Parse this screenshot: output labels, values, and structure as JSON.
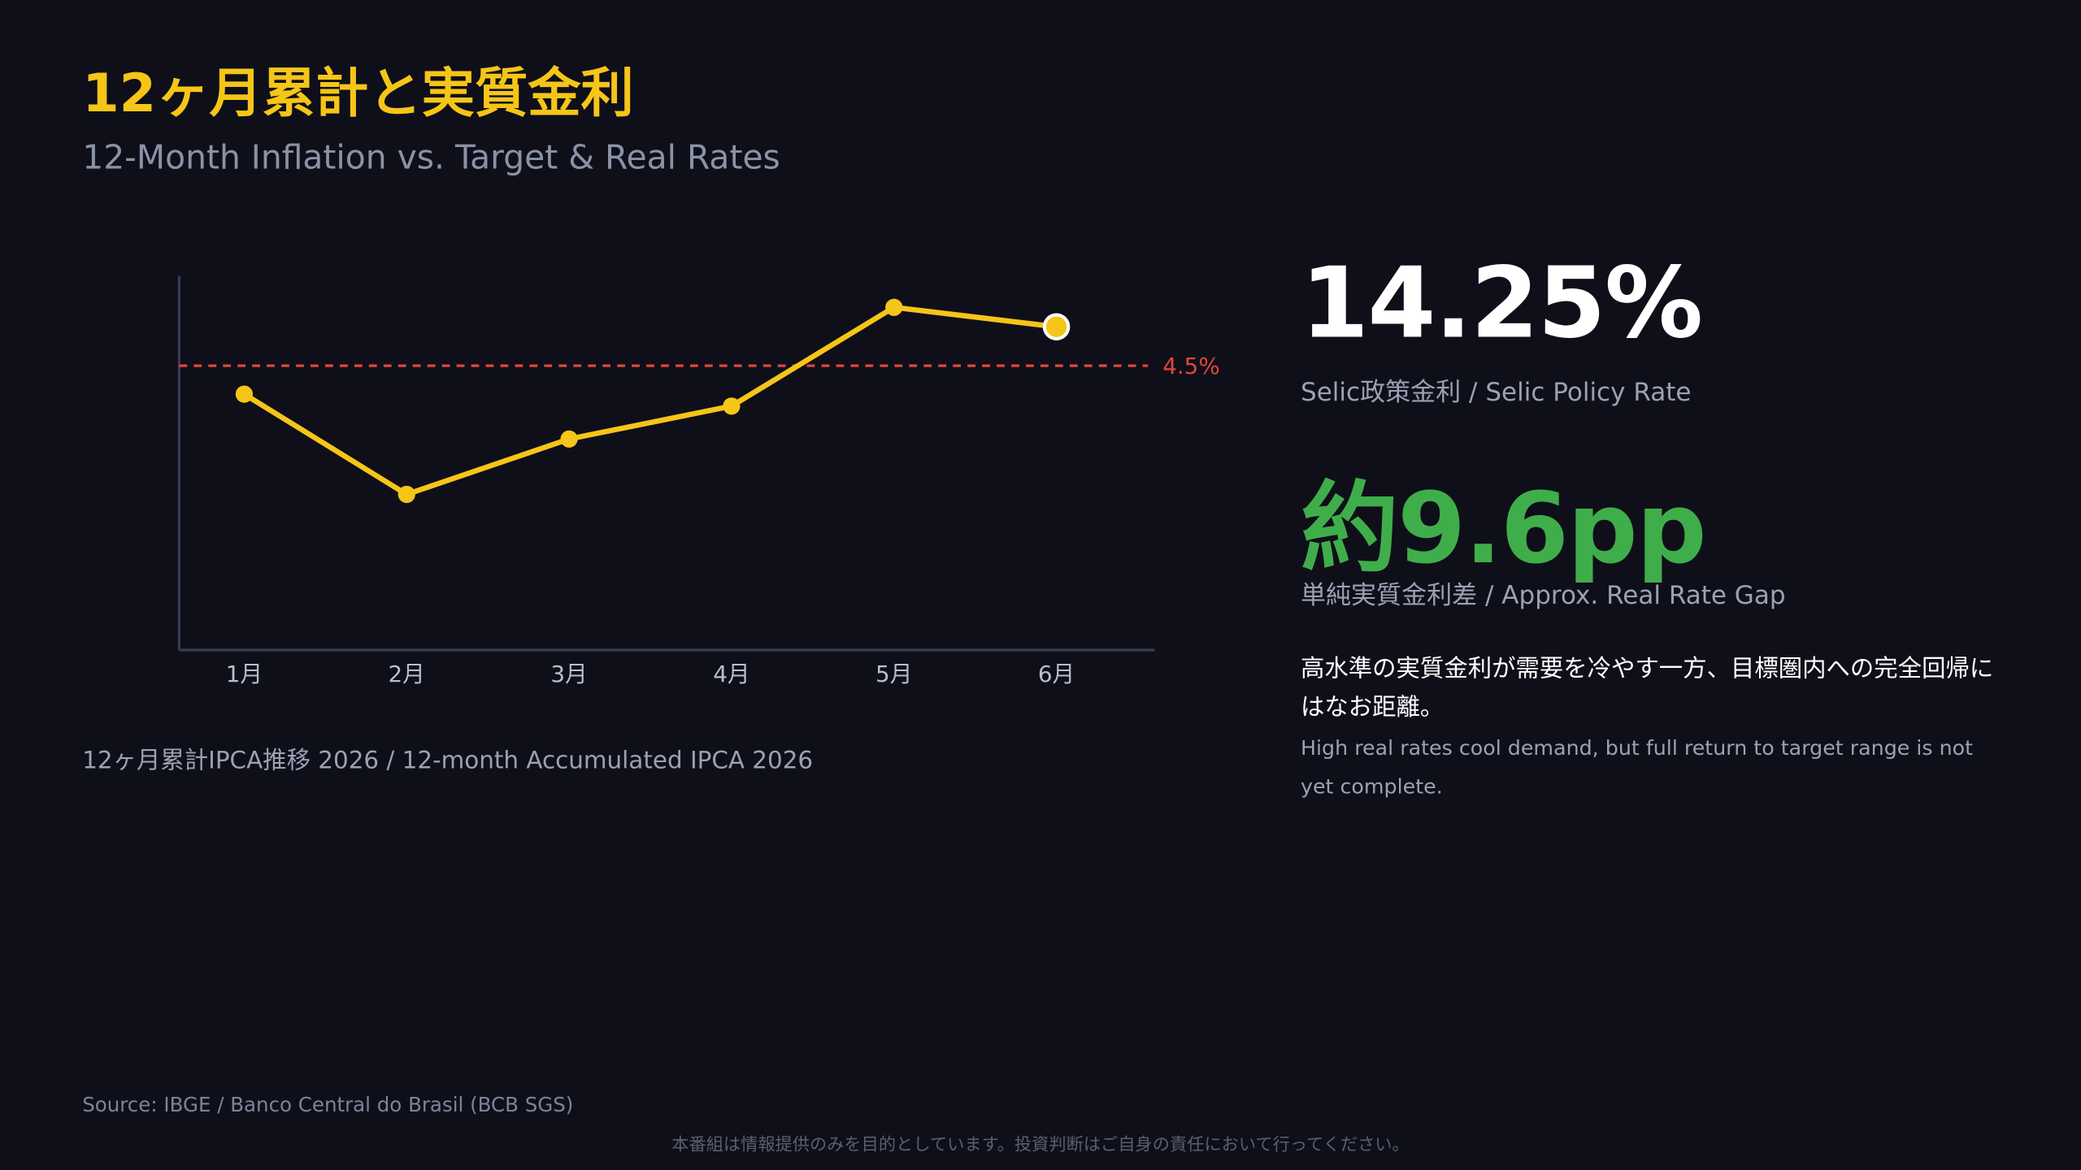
{
  "header": {
    "title": "12ヶ月累計と実質金利",
    "subtitle": "12-Month Inflation vs. Target & Real Rates"
  },
  "chart_data": {
    "type": "line",
    "categories": [
      "1月",
      "2月",
      "3月",
      "4月",
      "5月",
      "6月"
    ],
    "values": [
      4.31,
      3.64,
      4.01,
      4.23,
      4.89,
      4.76
    ],
    "color": "#f5c518",
    "ylim": [
      2.6,
      5.1
    ],
    "reference_line": {
      "value": 4.5,
      "label": "4.5%",
      "color": "#e0463c"
    },
    "caption": "12ヶ月累計IPCA推移 2026 / 12-month Accumulated IPCA 2026"
  },
  "kpis": [
    {
      "value": "14.25%",
      "label": "Selic政策金利 / Selic Policy Rate",
      "color": "#ffffff"
    },
    {
      "value": "約9.6pp",
      "label": "単純実質金利差 / Approx. Real Rate Gap",
      "color": "#3fae4a"
    }
  ],
  "note": {
    "ja": "高水準の実質金利が需要を冷やす一方、目標圏内への完全回帰にはなお距離。",
    "en": "High real rates cool demand, but full return to target range is not yet complete."
  },
  "footer": {
    "source": "Source: IBGE / Banco Central do Brasil (BCB SGS)",
    "disclaimer": "本番組は情報提供のみを目的としています。投資判断はご自身の責任において行ってください。"
  }
}
